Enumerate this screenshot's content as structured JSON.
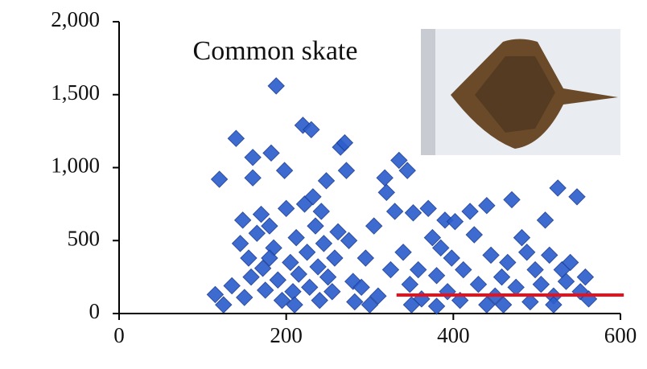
{
  "chart_data": {
    "type": "scatter",
    "title": "Common skate",
    "color": "#2e5fcc",
    "xlim": [
      0,
      600
    ],
    "xticks": [
      0,
      200,
      400,
      600
    ],
    "ylim": [
      0,
      2000
    ],
    "yticks": [
      0,
      500,
      {
        "value": 1000,
        "label": "1,000"
      },
      {
        "value": 1500,
        "label": "1,500"
      },
      {
        "value": 2000,
        "label": "2,000"
      }
    ],
    "x": [
      115,
      120,
      125,
      135,
      140,
      145,
      148,
      150,
      155,
      158,
      160,
      160,
      165,
      170,
      172,
      175,
      180,
      182,
      185,
      188,
      190,
      195,
      198,
      200,
      205,
      208,
      212,
      215,
      220,
      222,
      225,
      228,
      230,
      232,
      235,
      238,
      240,
      242,
      245,
      248,
      250,
      255,
      258,
      262,
      265,
      270,
      272,
      275,
      280,
      282,
      290,
      295,
      305,
      310,
      318,
      320,
      325,
      330,
      335,
      340,
      345,
      348,
      352,
      358,
      362,
      370,
      375,
      380,
      385,
      390,
      393,
      398,
      402,
      408,
      412,
      420,
      425,
      430,
      440,
      445,
      450,
      458,
      465,
      470,
      475,
      482,
      488,
      492,
      498,
      505,
      510,
      515,
      520,
      525,
      530,
      535,
      540,
      548,
      552,
      558,
      562,
      440,
      380,
      300,
      520,
      180,
      210,
      350,
      460
    ],
    "values": [
      130,
      920,
      60,
      190,
      1200,
      480,
      640,
      110,
      380,
      250,
      1070,
      930,
      550,
      680,
      310,
      160,
      600,
      1100,
      450,
      1560,
      230,
      90,
      980,
      720,
      350,
      150,
      520,
      270,
      1290,
      750,
      420,
      180,
      1260,
      800,
      600,
      320,
      90,
      700,
      480,
      910,
      250,
      150,
      380,
      560,
      1140,
      1170,
      980,
      500,
      220,
      80,
      180,
      380,
      600,
      120,
      930,
      830,
      300,
      700,
      1050,
      420,
      980,
      200,
      690,
      300,
      100,
      720,
      520,
      260,
      450,
      640,
      150,
      380,
      630,
      90,
      300,
      700,
      540,
      200,
      740,
      400,
      120,
      250,
      350,
      780,
      180,
      520,
      420,
      80,
      300,
      200,
      640,
      400,
      120,
      860,
      300,
      220,
      350,
      800,
      150,
      250,
      100,
      60,
      50,
      60,
      60,
      380,
      60,
      60,
      60
    ],
    "reference_line": {
      "x": [
        332,
        604
      ],
      "y": 127,
      "color": "#e8111b"
    }
  }
}
